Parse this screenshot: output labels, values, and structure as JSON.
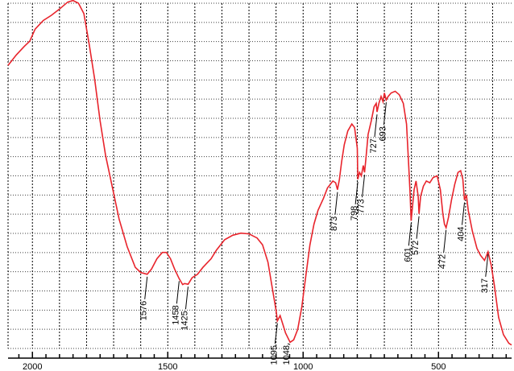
{
  "chart_data": {
    "type": "line",
    "title": "",
    "xlabel": "",
    "ylabel": "",
    "xlim": [
      2090,
      230
    ],
    "x_reversed": true,
    "ylim": [
      0,
      100
    ],
    "grid": true,
    "x_ticks": [
      {
        "value": 2000,
        "label": "2000"
      },
      {
        "value": 1500,
        "label": "1500"
      },
      {
        "value": 1000,
        "label": "1000"
      },
      {
        "value": 500,
        "label": "500"
      }
    ],
    "series": [
      {
        "color": "#e8242c",
        "points": [
          [
            2090,
            82
          ],
          [
            2060,
            85
          ],
          [
            2030,
            87.5
          ],
          [
            2010,
            89
          ],
          [
            1990,
            92.5
          ],
          [
            1960,
            95
          ],
          [
            1930,
            96.5
          ],
          [
            1900,
            98.3
          ],
          [
            1870,
            100.3
          ],
          [
            1850,
            100.8
          ],
          [
            1830,
            100
          ],
          [
            1810,
            97
          ],
          [
            1790,
            88
          ],
          [
            1770,
            78
          ],
          [
            1750,
            66
          ],
          [
            1730,
            56
          ],
          [
            1700,
            45
          ],
          [
            1680,
            37.5
          ],
          [
            1650,
            29.5
          ],
          [
            1620,
            23.5
          ],
          [
            1600,
            22
          ],
          [
            1576,
            21.5
          ],
          [
            1560,
            23
          ],
          [
            1540,
            26
          ],
          [
            1520,
            27.8
          ],
          [
            1505,
            27.8
          ],
          [
            1490,
            26
          ],
          [
            1475,
            23
          ],
          [
            1458,
            20.2
          ],
          [
            1445,
            18.5
          ],
          [
            1438,
            18.8
          ],
          [
            1425,
            18.6
          ],
          [
            1410,
            20.5
          ],
          [
            1390,
            21.5
          ],
          [
            1370,
            23.5
          ],
          [
            1340,
            26
          ],
          [
            1320,
            28.5
          ],
          [
            1290,
            31.5
          ],
          [
            1260,
            32.8
          ],
          [
            1230,
            33.4
          ],
          [
            1200,
            33.2
          ],
          [
            1170,
            32
          ],
          [
            1150,
            30
          ],
          [
            1130,
            25
          ],
          [
            1115,
            18
          ],
          [
            1100,
            11
          ],
          [
            1095,
            8
          ],
          [
            1085,
            9.5
          ],
          [
            1075,
            7
          ],
          [
            1065,
            4.5
          ],
          [
            1048,
            1.8
          ],
          [
            1035,
            2.5
          ],
          [
            1020,
            5.5
          ],
          [
            1005,
            12
          ],
          [
            990,
            21
          ],
          [
            975,
            30
          ],
          [
            960,
            36
          ],
          [
            945,
            40
          ],
          [
            925,
            43.5
          ],
          [
            910,
            46.5
          ],
          [
            890,
            48.5
          ],
          [
            880,
            48
          ],
          [
            873,
            46
          ],
          [
            866,
            49
          ],
          [
            858,
            54
          ],
          [
            848,
            59
          ],
          [
            835,
            63
          ],
          [
            820,
            65
          ],
          [
            810,
            64
          ],
          [
            800,
            58
          ],
          [
            798,
            49
          ],
          [
            792,
            51
          ],
          [
            785,
            50
          ],
          [
            778,
            53
          ],
          [
            773,
            51
          ],
          [
            768,
            55
          ],
          [
            760,
            62
          ],
          [
            748,
            66
          ],
          [
            738,
            70
          ],
          [
            730,
            71
          ],
          [
            727,
            68.5
          ],
          [
            720,
            71
          ],
          [
            712,
            73
          ],
          [
            705,
            71.5
          ],
          [
            700,
            74
          ],
          [
            693,
            72
          ],
          [
            686,
            73
          ],
          [
            675,
            74
          ],
          [
            660,
            74.5
          ],
          [
            645,
            73.5
          ],
          [
            630,
            71
          ],
          [
            618,
            65
          ],
          [
            610,
            53
          ],
          [
            605,
            45
          ],
          [
            601,
            37
          ],
          [
            596,
            41
          ],
          [
            590,
            46
          ],
          [
            583,
            48.5
          ],
          [
            575,
            44
          ],
          [
            572,
            39
          ],
          [
            566,
            44
          ],
          [
            556,
            47
          ],
          [
            545,
            48.5
          ],
          [
            532,
            48
          ],
          [
            520,
            49.5
          ],
          [
            505,
            50
          ],
          [
            493,
            46
          ],
          [
            484,
            39
          ],
          [
            478,
            36
          ],
          [
            472,
            35
          ],
          [
            463,
            38
          ],
          [
            452,
            43
          ],
          [
            440,
            47.5
          ],
          [
            428,
            51
          ],
          [
            418,
            51.5
          ],
          [
            410,
            49
          ],
          [
            404,
            43
          ],
          [
            397,
            44.5
          ],
          [
            390,
            40
          ],
          [
            375,
            34
          ],
          [
            358,
            29
          ],
          [
            345,
            27
          ],
          [
            330,
            25.5
          ],
          [
            317,
            28
          ],
          [
            305,
            24
          ],
          [
            293,
            18
          ],
          [
            278,
            9
          ],
          [
            260,
            4
          ],
          [
            240,
            1.5
          ],
          [
            230,
            1
          ]
        ]
      }
    ],
    "peaks": [
      {
        "x": 1576,
        "label": "1576"
      },
      {
        "x": 1458,
        "label": "1458"
      },
      {
        "x": 1425,
        "label": "1425"
      },
      {
        "x": 1095,
        "label": "1095"
      },
      {
        "x": 1048,
        "label": "1048"
      },
      {
        "x": 873,
        "label": "873"
      },
      {
        "x": 798,
        "label": "798"
      },
      {
        "x": 773,
        "label": "773"
      },
      {
        "x": 727,
        "label": "727"
      },
      {
        "x": 693,
        "label": "693"
      },
      {
        "x": 601,
        "label": "601"
      },
      {
        "x": 572,
        "label": "572"
      },
      {
        "x": 472,
        "label": "472"
      },
      {
        "x": 404,
        "label": "404"
      },
      {
        "x": 317,
        "label": "317"
      }
    ]
  }
}
